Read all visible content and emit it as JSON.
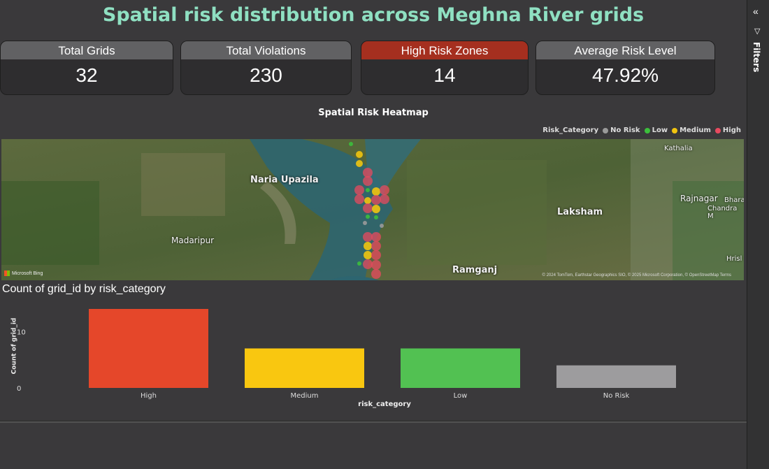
{
  "page": {
    "title": "Spatial risk distribution across Meghna River grids"
  },
  "kpis": [
    {
      "label": "Total Grids",
      "value": "32"
    },
    {
      "label": "Total Violations",
      "value": "230"
    },
    {
      "label": "High Risk Zones",
      "value": "14"
    },
    {
      "label": "Average Risk Level",
      "value": "47.92%"
    }
  ],
  "heatmap": {
    "title": "Spatial Risk Heatmap",
    "legend_title": "Risk_Category",
    "legend": [
      {
        "label": "No Risk",
        "color": "#9a9a9a"
      },
      {
        "label": "Low",
        "color": "#3cbf3c"
      },
      {
        "label": "Medium",
        "color": "#f1c40f"
      },
      {
        "label": "High",
        "color": "#e84a5f"
      }
    ],
    "places": [
      "Naria Upazila",
      "Madaripur",
      "Laksham",
      "Kathalia",
      "Rajnagar",
      "Bhara",
      "Chandra M",
      "Hrisl",
      "Ramganj"
    ],
    "attribution": "Microsoft Bing",
    "copyright": "© 2024 TomTom, Earthstar Geographics SIO, © 2025 Microsoft Corporation, © OpenStreetMap Terms"
  },
  "chart_data": {
    "type": "bar",
    "title": "Count of grid_id by risk_category",
    "xlabel": "risk_category",
    "ylabel": "Count of grid_id",
    "categories": [
      "High",
      "Medium",
      "Low",
      "No Risk"
    ],
    "values": [
      14,
      7,
      7,
      4
    ],
    "colors": [
      "#e5472a",
      "#f9c710",
      "#52c152",
      "#9d9c9e"
    ],
    "yticks": [
      "0",
      "10"
    ],
    "ylim": [
      0,
      15
    ]
  },
  "sidepane": {
    "label": "Filters",
    "collapse_icon": "double-chevron-left-icon",
    "filter_icon": "funnel-icon"
  }
}
